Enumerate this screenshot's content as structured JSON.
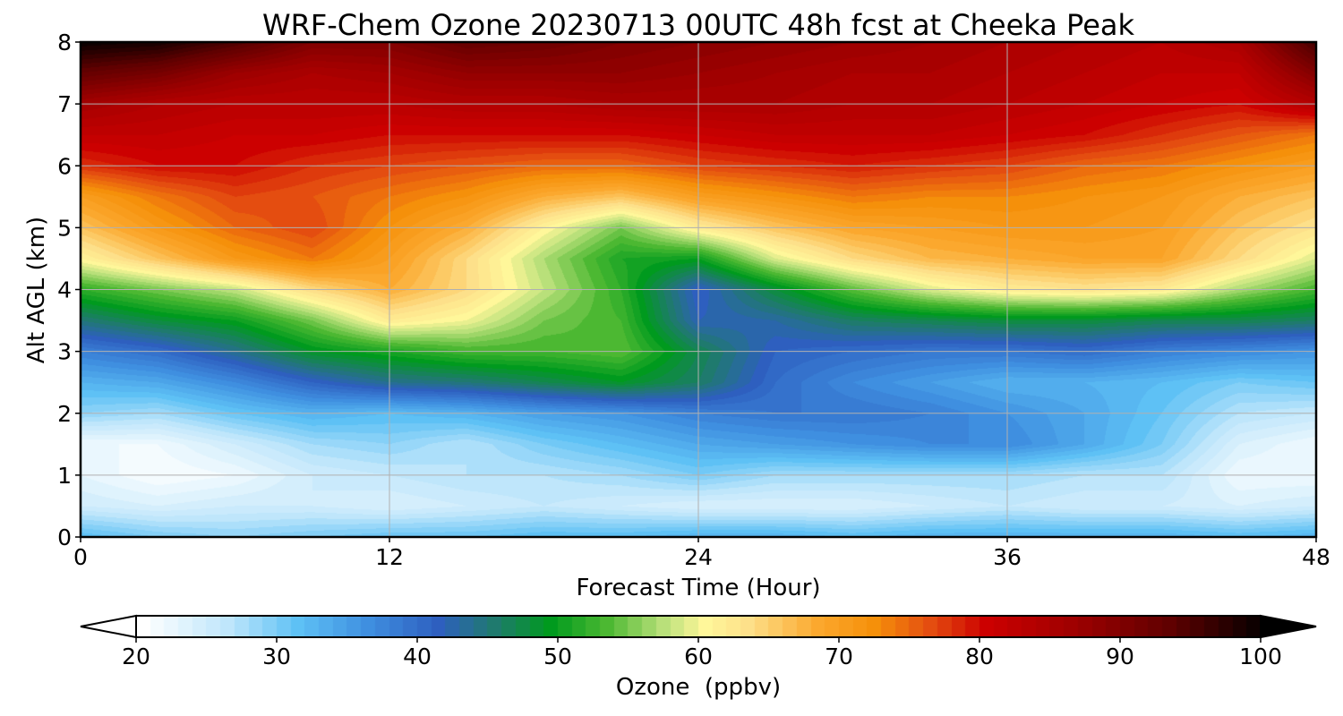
{
  "chart_data": {
    "type": "heatmap",
    "title": "WRF-Chem Ozone  20230713 00UTC 48h fcst at Cheeka Peak",
    "xlabel": "Forecast Time (Hour)",
    "ylabel": "Alt AGL (km)",
    "xlim": [
      0,
      48
    ],
    "ylim": [
      0,
      8
    ],
    "xticks": [
      0,
      12,
      24,
      36,
      48
    ],
    "yticks": [
      0,
      1,
      2,
      3,
      4,
      5,
      6,
      7,
      8
    ],
    "grid": true,
    "colorbar": {
      "label": "Ozone  (ppbv)",
      "range": [
        20,
        100
      ],
      "ticks": [
        20,
        30,
        40,
        50,
        60,
        70,
        80,
        90,
        100
      ],
      "extend": "both",
      "stops": [
        {
          "value": 20,
          "color": "#ffffff"
        },
        {
          "value": 26,
          "color": "#bfe6fb"
        },
        {
          "value": 31,
          "color": "#5ec1f5"
        },
        {
          "value": 36,
          "color": "#3f8fe0"
        },
        {
          "value": 41,
          "color": "#2e5fbf"
        },
        {
          "value": 45,
          "color": "#1f7a6e"
        },
        {
          "value": 49,
          "color": "#009a1e"
        },
        {
          "value": 53,
          "color": "#4cb832"
        },
        {
          "value": 57,
          "color": "#b9e07a"
        },
        {
          "value": 60,
          "color": "#fff79a"
        },
        {
          "value": 63,
          "color": "#fde08a"
        },
        {
          "value": 68,
          "color": "#fba82e"
        },
        {
          "value": 72,
          "color": "#f5900a"
        },
        {
          "value": 76,
          "color": "#e44d10"
        },
        {
          "value": 80,
          "color": "#cc0000"
        },
        {
          "value": 86,
          "color": "#a00000"
        },
        {
          "value": 93,
          "color": "#600000"
        },
        {
          "value": 100,
          "color": "#000000"
        }
      ]
    },
    "field": {
      "x": [
        0,
        3,
        6,
        9,
        12,
        15,
        18,
        21,
        24,
        27,
        30,
        33,
        36,
        39,
        42,
        45,
        48
      ],
      "y": [
        0,
        0.5,
        1,
        1.5,
        2,
        2.5,
        3,
        3.5,
        4,
        4.5,
        5,
        5.5,
        6,
        6.5,
        7,
        7.5,
        8
      ],
      "z": [
        [
          32,
          30,
          29,
          30,
          31,
          31,
          32,
          32,
          33,
          33,
          32,
          33,
          33,
          33,
          33,
          32,
          33
        ],
        [
          25,
          24,
          25,
          25,
          24,
          25,
          26,
          25,
          24,
          24,
          24,
          25,
          26,
          25,
          25,
          24,
          25
        ],
        [
          23,
          21,
          22,
          25,
          26,
          27,
          27,
          28,
          30,
          28,
          28,
          28,
          28,
          27,
          27,
          22,
          22
        ],
        [
          22,
          22,
          25,
          28,
          29,
          27,
          30,
          32,
          34,
          35,
          36,
          37,
          37,
          34,
          30,
          24,
          22
        ],
        [
          29,
          28,
          31,
          33,
          32,
          33,
          35,
          36,
          38,
          39,
          39,
          38,
          36,
          34,
          31,
          27,
          26
        ],
        [
          33,
          34,
          37,
          41,
          44,
          45,
          47,
          49,
          46,
          40,
          37,
          35,
          33,
          33,
          32,
          30,
          31
        ],
        [
          38,
          40,
          44,
          49,
          51,
          53,
          53,
          54,
          47,
          41,
          40,
          39,
          39,
          40,
          38,
          37,
          36
        ],
        [
          45,
          48,
          50,
          55,
          62,
          60,
          55,
          53,
          42,
          43,
          46,
          47,
          48,
          48,
          47,
          47,
          46
        ],
        [
          52,
          55,
          58,
          64,
          68,
          64,
          58,
          52,
          41,
          48,
          54,
          59,
          62,
          63,
          62,
          57,
          53
        ],
        [
          61,
          66,
          71,
          74,
          70,
          64,
          57,
          51,
          50,
          59,
          64,
          67,
          68,
          69,
          69,
          64,
          59
        ],
        [
          66,
          71,
          75,
          77,
          72,
          68,
          61,
          55,
          62,
          66,
          69,
          70,
          71,
          71,
          70,
          66,
          63
        ],
        [
          70,
          74,
          77,
          76,
          74,
          72,
          68,
          66,
          70,
          72,
          74,
          73,
          73,
          72,
          71,
          68,
          66
        ],
        [
          78,
          80,
          80,
          78,
          77,
          76,
          75,
          75,
          77,
          78,
          79,
          78,
          77,
          75,
          74,
          72,
          70
        ],
        [
          82,
          82,
          81,
          81,
          80,
          80,
          80,
          80,
          81,
          82,
          82,
          82,
          81,
          80,
          78,
          76,
          74
        ],
        [
          86,
          84,
          83,
          83,
          83,
          84,
          84,
          85,
          85,
          85,
          84,
          84,
          83,
          82,
          81,
          80,
          84
        ],
        [
          93,
          91,
          87,
          85,
          86,
          88,
          88,
          88,
          87,
          86,
          85,
          85,
          84,
          83,
          82,
          82,
          90
        ],
        [
          100,
          99,
          95,
          90,
          90,
          93,
          92,
          90,
          89,
          88,
          87,
          86,
          85,
          84,
          83,
          85,
          96
        ]
      ]
    }
  }
}
